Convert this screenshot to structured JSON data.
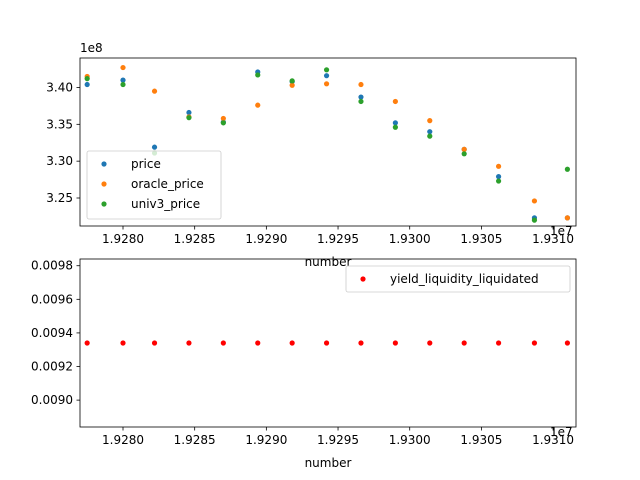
{
  "chart_data": [
    {
      "type": "scatter",
      "title": "",
      "xlabel": "number",
      "ylabel": "",
      "x_offset_label": "1e7",
      "y_offset_label": "1e8",
      "xlim": [
        19277000,
        19311600
      ],
      "ylim": [
        3.212,
        3.44
      ],
      "xticks": [
        19280000,
        19285000,
        19290000,
        19295000,
        19300000,
        19305000,
        19310000
      ],
      "xtick_labels": [
        "1.9280",
        "1.9285",
        "1.9290",
        "1.9295",
        "1.9300",
        "1.9305",
        "1.9310"
      ],
      "yticks": [
        3.25,
        3.3,
        3.35,
        3.4
      ],
      "ytick_labels": [
        "3.25",
        "3.30",
        "3.35",
        "3.40"
      ],
      "legend_position": "lower-left",
      "x": [
        19277500,
        19280000,
        19282200,
        19284600,
        19287000,
        19289400,
        19291800,
        19294200,
        19296600,
        19299000,
        19301400,
        19303800,
        19306200,
        19308700,
        19311000
      ],
      "series": [
        {
          "name": "price",
          "color": "#1f77b4",
          "values": [
            3.404,
            3.41,
            3.319,
            3.366,
            3.353,
            3.421,
            3.408,
            3.416,
            3.387,
            3.352,
            3.34,
            3.316,
            3.279,
            3.223,
            3.223
          ]
        },
        {
          "name": "oracle_price",
          "color": "#ff7f0e",
          "values": [
            3.415,
            3.427,
            3.395,
            3.36,
            3.358,
            3.376,
            3.403,
            3.405,
            3.404,
            3.381,
            3.355,
            3.316,
            3.293,
            3.246,
            3.223
          ]
        },
        {
          "name": "univ3_price",
          "color": "#2ca02c",
          "values": [
            3.412,
            3.404,
            3.311,
            3.359,
            3.352,
            3.417,
            3.409,
            3.424,
            3.381,
            3.346,
            3.334,
            3.31,
            3.273,
            3.22,
            3.289
          ]
        }
      ]
    },
    {
      "type": "scatter",
      "title": "",
      "xlabel": "number",
      "ylabel": "",
      "x_offset_label": "1e7",
      "xlim": [
        19277000,
        19311600
      ],
      "ylim": [
        0.00884,
        0.00984
      ],
      "xticks": [
        19280000,
        19285000,
        19290000,
        19295000,
        19300000,
        19305000,
        19310000
      ],
      "xtick_labels": [
        "1.9280",
        "1.9285",
        "1.9290",
        "1.9295",
        "1.9300",
        "1.9305",
        "1.9310"
      ],
      "yticks": [
        0.009,
        0.0092,
        0.0094,
        0.0096,
        0.0098
      ],
      "ytick_labels": [
        "0.0090",
        "0.0092",
        "0.0094",
        "0.0096",
        "0.0098"
      ],
      "legend_position": "top-right",
      "x": [
        19277500,
        19280000,
        19282200,
        19284600,
        19287000,
        19289400,
        19291800,
        19294200,
        19296600,
        19299000,
        19301400,
        19303800,
        19306200,
        19308700,
        19311000
      ],
      "series": [
        {
          "name": "yield_liquidity_liquidated",
          "color": "#ff0000",
          "values": [
            0.00934,
            0.00934,
            0.00934,
            0.00934,
            0.00934,
            0.00934,
            0.00934,
            0.00934,
            0.00934,
            0.00934,
            0.00934,
            0.00934,
            0.00934,
            0.00934,
            0.00934
          ]
        }
      ]
    }
  ]
}
